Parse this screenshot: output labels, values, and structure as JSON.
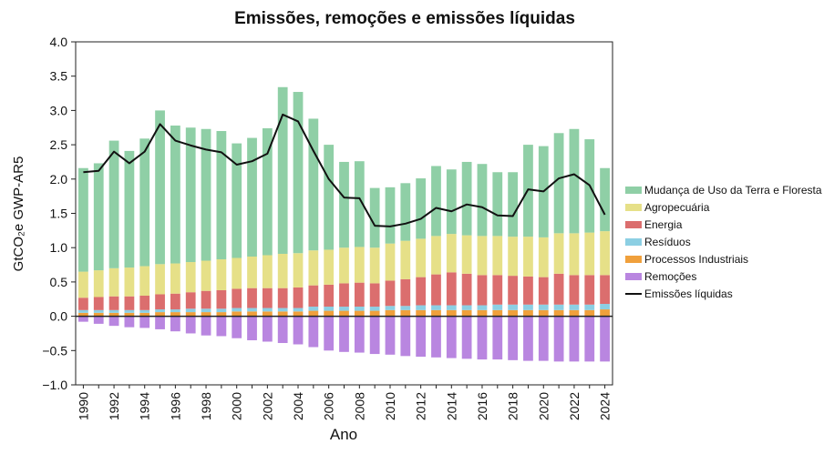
{
  "chart_data": {
    "type": "bar",
    "title": "Emissões, remoções e emissões líquidas",
    "xlabel": "Ano",
    "ylabel": "GtCO₂e GWP-AR5",
    "ylim": [
      -1.0,
      4.0
    ],
    "yticks": [
      -1.0,
      -0.5,
      0.0,
      0.5,
      1.0,
      1.5,
      2.0,
      2.5,
      3.0,
      3.5,
      4.0
    ],
    "ytick_labels": [
      "−1.0",
      "−0.5",
      "0.0",
      "0.5",
      "1.0",
      "1.5",
      "2.0",
      "2.5",
      "3.0",
      "3.5",
      "4.0"
    ],
    "categories": [
      "1990",
      "1991",
      "1992",
      "1993",
      "1994",
      "1995",
      "1996",
      "1997",
      "1998",
      "1999",
      "2000",
      "2001",
      "2002",
      "2003",
      "2004",
      "2005",
      "2006",
      "2007",
      "2008",
      "2009",
      "2010",
      "2011",
      "2012",
      "2013",
      "2014",
      "2015",
      "2016",
      "2017",
      "2018",
      "2019",
      "2020",
      "2021",
      "2022",
      "2023",
      "2024"
    ],
    "xtick_labels": [
      "1990",
      "1992",
      "1994",
      "1996",
      "1998",
      "2000",
      "2002",
      "2004",
      "2006",
      "2008",
      "2010",
      "2012",
      "2014",
      "2016",
      "2018",
      "2020",
      "2022",
      "2024"
    ],
    "legend_position": "right",
    "grid": false,
    "stacked": true,
    "series": [
      {
        "name": "Processos Industriais",
        "color": "#f0a03c",
        "values": [
          0.05,
          0.05,
          0.05,
          0.05,
          0.05,
          0.06,
          0.06,
          0.06,
          0.06,
          0.06,
          0.07,
          0.07,
          0.07,
          0.07,
          0.07,
          0.08,
          0.08,
          0.08,
          0.08,
          0.08,
          0.09,
          0.09,
          0.09,
          0.09,
          0.09,
          0.09,
          0.09,
          0.09,
          0.09,
          0.09,
          0.09,
          0.09,
          0.09,
          0.09,
          0.1
        ]
      },
      {
        "name": "Resíduos",
        "color": "#8ccfe3",
        "values": [
          0.04,
          0.04,
          0.04,
          0.04,
          0.04,
          0.04,
          0.04,
          0.05,
          0.05,
          0.05,
          0.05,
          0.05,
          0.05,
          0.05,
          0.05,
          0.06,
          0.06,
          0.06,
          0.06,
          0.06,
          0.06,
          0.06,
          0.07,
          0.07,
          0.07,
          0.07,
          0.07,
          0.08,
          0.08,
          0.08,
          0.08,
          0.08,
          0.08,
          0.08,
          0.08
        ]
      },
      {
        "name": "Energia",
        "color": "#db6e6e",
        "values": [
          0.18,
          0.19,
          0.2,
          0.2,
          0.21,
          0.22,
          0.23,
          0.24,
          0.26,
          0.27,
          0.28,
          0.29,
          0.29,
          0.29,
          0.3,
          0.31,
          0.32,
          0.34,
          0.35,
          0.34,
          0.37,
          0.39,
          0.41,
          0.45,
          0.48,
          0.46,
          0.44,
          0.43,
          0.42,
          0.41,
          0.4,
          0.45,
          0.43,
          0.43,
          0.42
        ]
      },
      {
        "name": "Agropecuária",
        "color": "#e6e088",
        "values": [
          0.38,
          0.39,
          0.41,
          0.42,
          0.43,
          0.44,
          0.44,
          0.44,
          0.44,
          0.45,
          0.45,
          0.46,
          0.48,
          0.5,
          0.5,
          0.51,
          0.51,
          0.52,
          0.52,
          0.52,
          0.54,
          0.56,
          0.56,
          0.56,
          0.56,
          0.56,
          0.57,
          0.57,
          0.57,
          0.58,
          0.58,
          0.59,
          0.61,
          0.62,
          0.64
        ]
      },
      {
        "name": "Mudança de Uso da Terra e Floresta",
        "color": "#8fcfa6",
        "values": [
          1.51,
          1.56,
          1.86,
          1.7,
          1.86,
          2.24,
          2.01,
          1.96,
          1.92,
          1.87,
          1.67,
          1.73,
          1.85,
          2.43,
          2.35,
          1.92,
          1.53,
          1.25,
          1.25,
          0.87,
          0.82,
          0.84,
          0.88,
          1.02,
          0.94,
          1.07,
          1.05,
          0.93,
          0.94,
          1.34,
          1.33,
          1.46,
          1.52,
          1.36,
          0.92
        ]
      },
      {
        "name": "Remoções",
        "color": "#b986e0",
        "values": [
          -0.08,
          -0.11,
          -0.14,
          -0.16,
          -0.17,
          -0.19,
          -0.22,
          -0.25,
          -0.28,
          -0.29,
          -0.32,
          -0.35,
          -0.37,
          -0.39,
          -0.41,
          -0.45,
          -0.5,
          -0.52,
          -0.53,
          -0.55,
          -0.56,
          -0.58,
          -0.59,
          -0.6,
          -0.61,
          -0.62,
          -0.63,
          -0.63,
          -0.64,
          -0.65,
          -0.65,
          -0.66,
          -0.66,
          -0.66,
          -0.66
        ]
      }
    ],
    "line": {
      "name": "Emissões líquidas",
      "color": "#111111",
      "values": [
        2.1,
        2.12,
        2.4,
        2.23,
        2.4,
        2.8,
        2.56,
        2.49,
        2.43,
        2.39,
        2.21,
        2.26,
        2.37,
        2.94,
        2.84,
        2.41,
        2.0,
        1.73,
        1.72,
        1.32,
        1.31,
        1.35,
        1.42,
        1.58,
        1.53,
        1.63,
        1.59,
        1.47,
        1.46,
        1.85,
        1.82,
        2.01,
        2.07,
        1.91,
        1.48
      ]
    },
    "legend_order": [
      "Mudança de Uso da Terra e Floresta",
      "Agropecuária",
      "Energia",
      "Resíduos",
      "Processos Industriais",
      "Remoções",
      "Emissões líquidas"
    ]
  }
}
